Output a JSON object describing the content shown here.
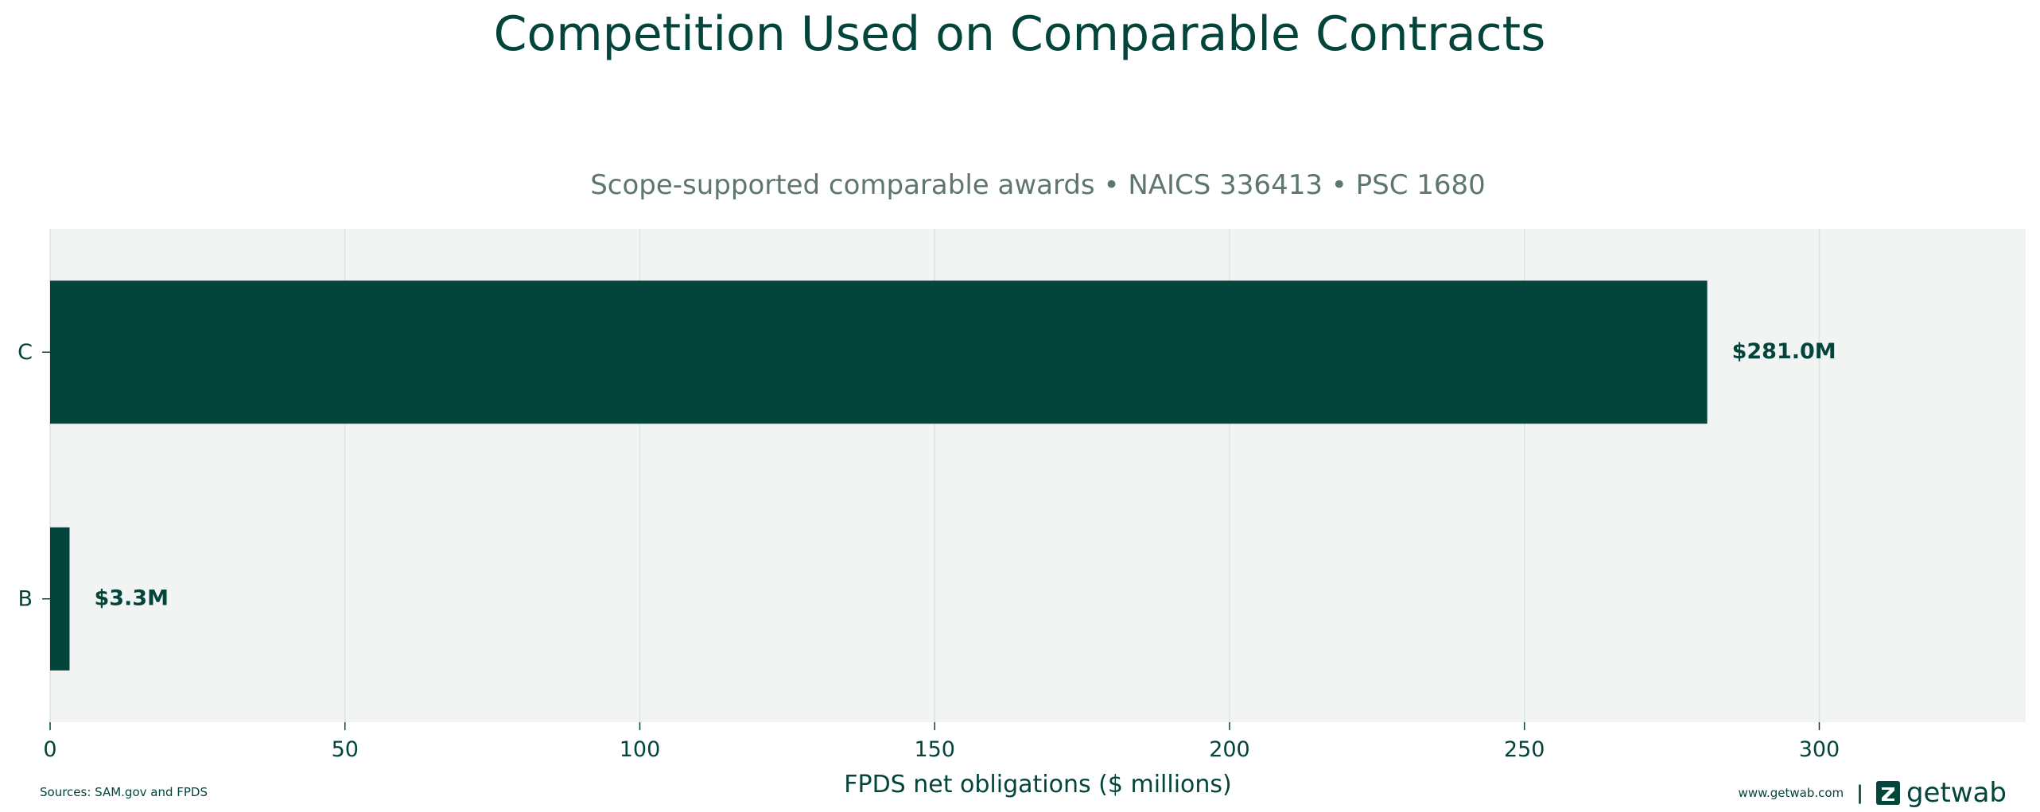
{
  "chart_data": {
    "type": "bar",
    "orientation": "horizontal",
    "title": "Competition Used on Comparable Contracts",
    "subtitle": "Scope-supported comparable awards • NAICS 336413 • PSC 1680",
    "categories": [
      "C",
      "B"
    ],
    "values": [
      281.0,
      3.3
    ],
    "data_labels": [
      "$281.0M",
      "$3.3M"
    ],
    "xlabel": "FPDS net obligations ($ millions)",
    "ylabel": "",
    "xlim": [
      0,
      335
    ],
    "xticks": [
      0,
      50,
      100,
      150,
      200,
      250,
      300
    ],
    "grid": "vertical",
    "colors": {
      "bar": "#03443b",
      "plot_bg": "#f2f4f3",
      "grid": "#d9e5df",
      "text": "#03443b",
      "subtitle": "#5e7670"
    }
  },
  "footer": {
    "sources": "Sources: SAM.gov and FPDS",
    "url": "www.getwab.com",
    "separator": "|",
    "brand": "getwab",
    "brand_icon": "getwab-logo-icon"
  }
}
